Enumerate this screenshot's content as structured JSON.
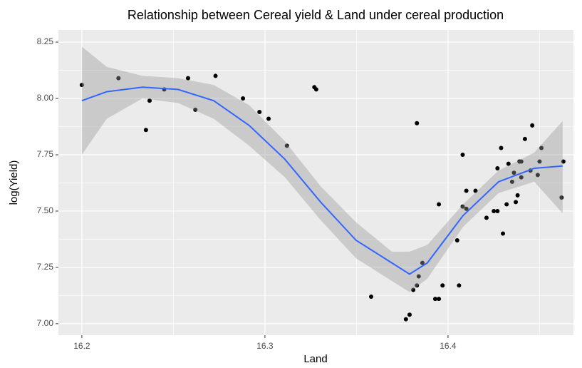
{
  "chart_data": {
    "type": "scatter",
    "title": "Relationship between Cereal yield & Land under cereal production",
    "x_label": "Land",
    "y_label": "log(Yield)",
    "x": [
      16.2,
      16.22,
      16.235,
      16.237,
      16.245,
      16.258,
      16.262,
      16.273,
      16.288,
      16.297,
      16.302,
      16.312,
      16.327,
      16.328,
      16.358,
      16.377,
      16.379,
      16.383,
      16.381,
      16.383,
      16.384,
      16.386,
      16.393,
      16.395,
      16.395,
      16.397,
      16.405,
      16.406,
      16.408,
      16.408,
      16.41,
      16.41,
      16.415,
      16.421,
      16.425,
      16.427,
      16.427,
      16.429,
      16.43,
      16.432,
      16.433,
      16.435,
      16.436,
      16.437,
      16.438,
      16.439,
      16.44,
      16.44,
      16.442,
      16.445,
      16.446,
      16.449,
      16.45,
      16.451,
      16.462,
      16.463
    ],
    "y": [
      8.06,
      8.09,
      7.86,
      7.99,
      8.04,
      8.09,
      7.95,
      8.1,
      8.0,
      7.94,
      7.91,
      7.79,
      8.05,
      8.04,
      7.12,
      7.02,
      7.04,
      7.89,
      7.15,
      7.17,
      7.21,
      7.27,
      7.11,
      7.11,
      7.53,
      7.17,
      7.37,
      7.17,
      7.52,
      7.75,
      7.59,
      7.51,
      7.59,
      7.47,
      7.5,
      7.69,
      7.5,
      7.78,
      7.4,
      7.53,
      7.71,
      7.63,
      7.67,
      7.54,
      7.57,
      7.72,
      7.72,
      7.65,
      7.82,
      7.68,
      7.88,
      7.66,
      7.72,
      7.78,
      7.56,
      7.72
    ],
    "color": "#000000",
    "smooth": {
      "x": [
        16.2,
        16.2136,
        16.2331,
        16.2525,
        16.272,
        16.2914,
        16.3109,
        16.3304,
        16.3498,
        16.3693,
        16.379,
        16.3887,
        16.4082,
        16.4276,
        16.4471,
        16.4626
      ],
      "y": [
        7.99,
        8.03,
        8.05,
        8.04,
        7.99,
        7.88,
        7.73,
        7.54,
        7.37,
        7.27,
        7.22,
        7.27,
        7.48,
        7.63,
        7.69,
        7.7
      ],
      "lower": [
        7.75,
        7.91,
        8.0,
        7.98,
        7.91,
        7.79,
        7.65,
        7.46,
        7.29,
        7.19,
        7.14,
        7.2,
        7.43,
        7.58,
        7.63,
        7.49
      ],
      "upper": [
        8.23,
        8.14,
        8.1,
        8.09,
        8.06,
        7.97,
        7.81,
        7.61,
        7.45,
        7.32,
        7.32,
        7.35,
        7.53,
        7.68,
        7.76,
        7.9
      ],
      "color": "#3366FF",
      "fill": "#999999"
    },
    "xlim": [
      16.1872,
      16.4685
    ],
    "ylim": [
      6.949,
      8.304
    ],
    "xticks": [
      16.2,
      16.3,
      16.4
    ],
    "yticks": [
      {
        "value": 7.0,
        "label": "7.00"
      },
      7.25,
      {
        "value": 7.5,
        "label": "7.50"
      },
      7.75,
      {
        "value": 8.0,
        "label": "8.00"
      },
      8.25
    ],
    "grid": true
  }
}
